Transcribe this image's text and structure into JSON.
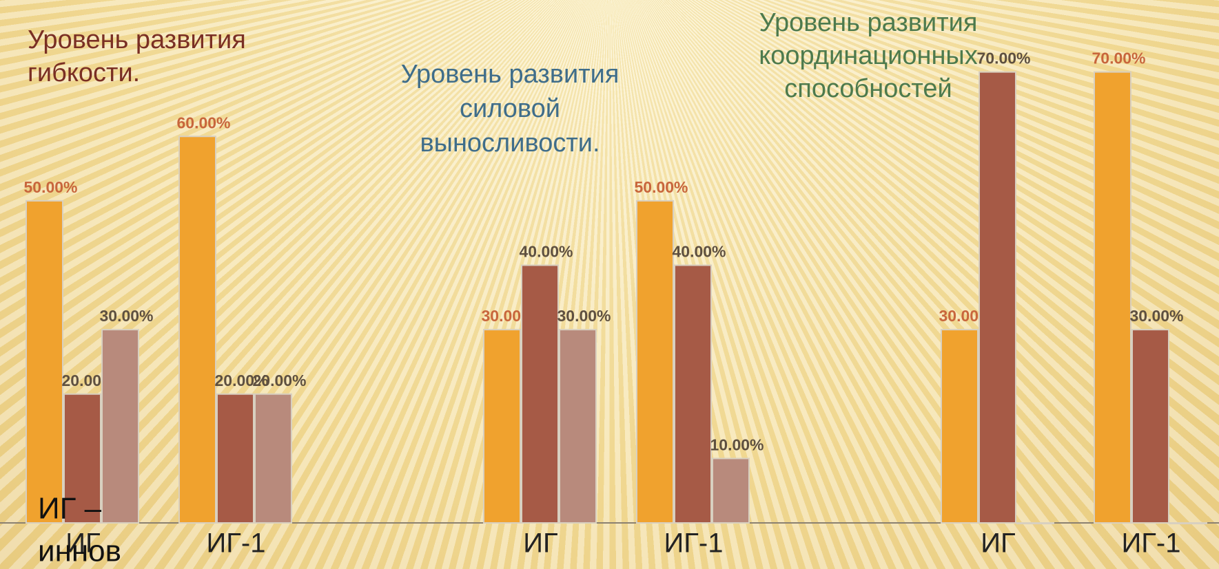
{
  "chart_data": [
    {
      "type": "bar",
      "title": [
        "Уровень развития",
        "гибкости."
      ],
      "title_color": "#7a2f24",
      "categories": [
        "ИГ",
        "ИГ-1"
      ],
      "ylim": [
        0,
        80
      ],
      "series": [
        {
          "color": "#f0a22e",
          "label_color": "#c8663c",
          "values": [
            50,
            60
          ],
          "value_labels": [
            "50.00%",
            "60.00%"
          ]
        },
        {
          "color": "#a65a46",
          "label_color": "#5e5040",
          "values": [
            20,
            20
          ],
          "value_labels": [
            "20.00%",
            "20.00%"
          ]
        },
        {
          "color": "#b88a7c",
          "label_color": "#5e5040",
          "values": [
            30,
            20
          ],
          "value_labels": [
            "30.00%",
            "20.00%"
          ]
        }
      ]
    },
    {
      "type": "bar",
      "title": [
        "Уровень развития",
        "силовой",
        "выносливости."
      ],
      "title_color": "#3f6d8a",
      "categories": [
        "ИГ",
        "ИГ-1"
      ],
      "ylim": [
        0,
        80
      ],
      "series": [
        {
          "color": "#f0a22e",
          "label_color": "#c8663c",
          "values": [
            30,
            50
          ],
          "value_labels": [
            "30.00%",
            "50.00%"
          ]
        },
        {
          "color": "#a65a46",
          "label_color": "#5e5040",
          "values": [
            40,
            40
          ],
          "value_labels": [
            "40.00%",
            "40.00%"
          ]
        },
        {
          "color": "#b88a7c",
          "label_color": "#5e5040",
          "values": [
            30,
            10
          ],
          "value_labels": [
            "30.00%",
            "10.00%"
          ]
        }
      ]
    },
    {
      "type": "bar",
      "title": [
        "Уровень развития",
        "координационных",
        "способностей"
      ],
      "title_color": "#4d7a4d",
      "categories": [
        "ИГ",
        "ИГ-1"
      ],
      "ylim": [
        0,
        80
      ],
      "series": [
        {
          "color": "#f0a22e",
          "label_color": "#c8663c",
          "values": [
            30,
            70
          ],
          "value_labels": [
            "30.00%",
            "70.00%"
          ]
        },
        {
          "color": "#a65a46",
          "label_color": "#5e5040",
          "values": [
            70,
            30
          ],
          "value_labels": [
            "70.00%",
            "30.00%"
          ]
        },
        {
          "color": "#b88a7c",
          "label_color": "#5e5040",
          "values": [
            0,
            0
          ],
          "value_labels": [
            null,
            null
          ]
        }
      ]
    }
  ],
  "annotation": [
    "ИГ –",
    "иннов"
  ]
}
